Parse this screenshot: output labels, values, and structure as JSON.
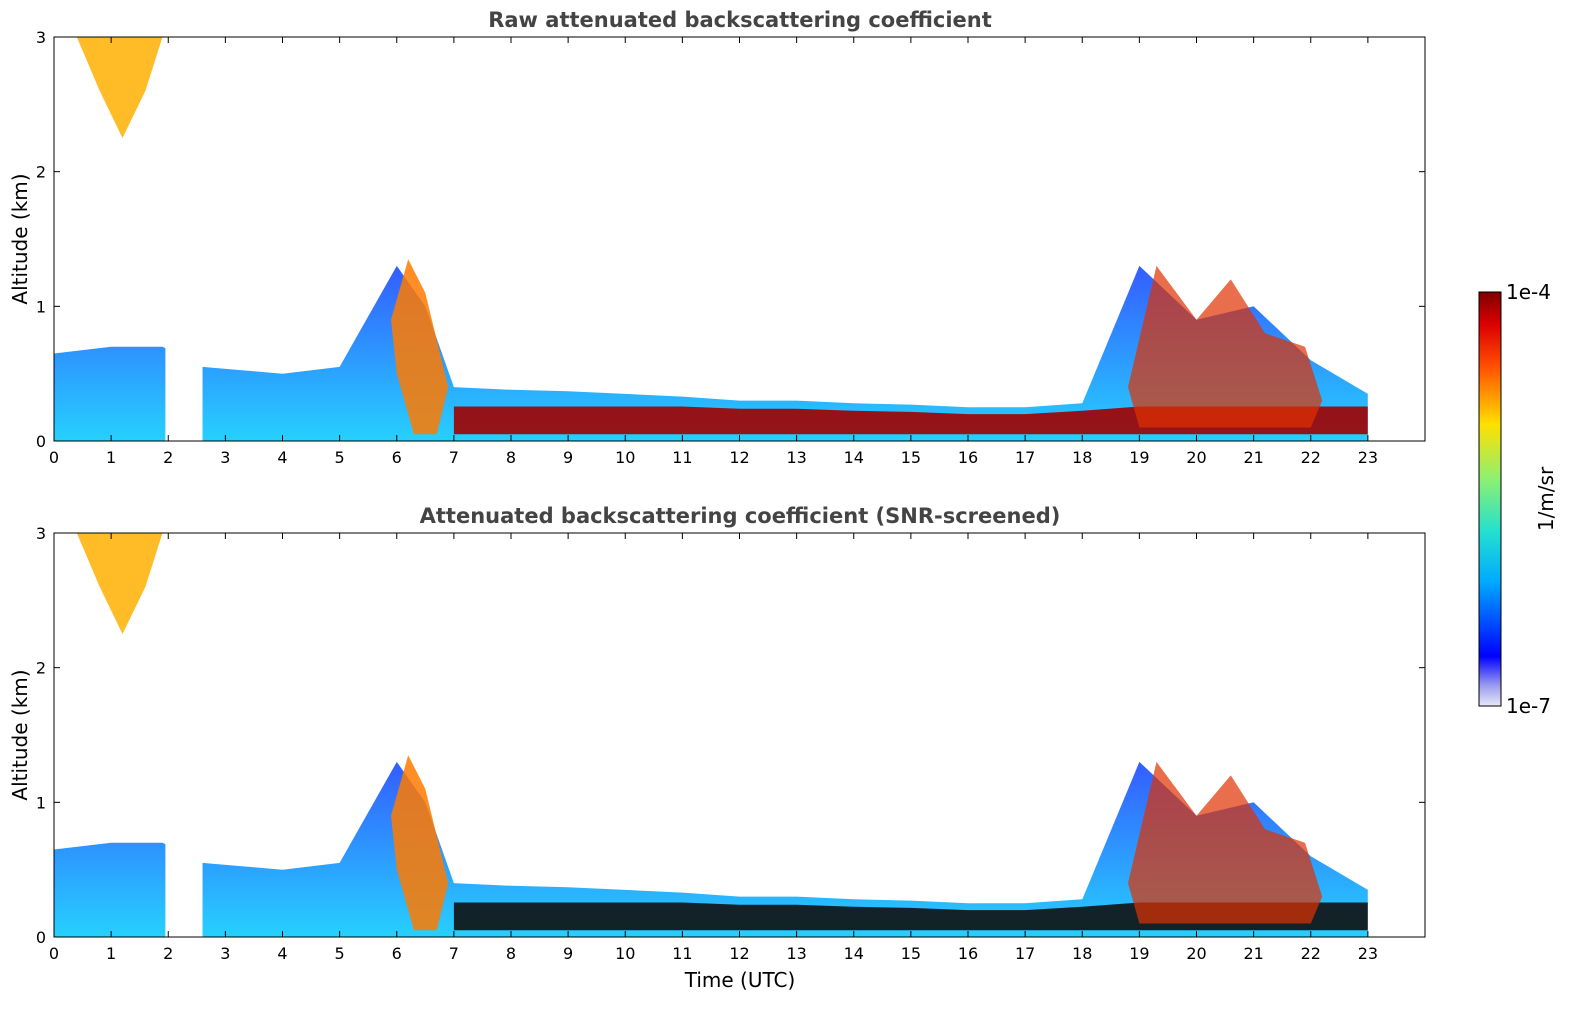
{
  "chart_data": [
    {
      "type": "heatmap",
      "title": "Raw attenuated backscattering coefficient",
      "xlabel": "",
      "ylabel": "Altitude (km)",
      "xlim": [
        0,
        24
      ],
      "ylim": [
        0,
        3
      ],
      "xticks": [
        "0",
        "1",
        "2",
        "3",
        "4",
        "5",
        "6",
        "7",
        "8",
        "9",
        "10",
        "11",
        "12",
        "13",
        "14",
        "15",
        "16",
        "17",
        "18",
        "19",
        "20",
        "21",
        "22",
        "23"
      ],
      "yticks": [
        "0",
        "1",
        "2",
        "3"
      ],
      "data_gap": [
        1.95,
        2.6
      ],
      "data_end": 23.0,
      "boundary_layer_top_km": [
        [
          0,
          0.65
        ],
        [
          1,
          0.7
        ],
        [
          1.9,
          0.7
        ],
        [
          2.6,
          0.55
        ],
        [
          4,
          0.5
        ],
        [
          5,
          0.55
        ],
        [
          6,
          1.3
        ],
        [
          6.5,
          1.0
        ],
        [
          7,
          0.4
        ],
        [
          8,
          0.38
        ],
        [
          9,
          0.37
        ],
        [
          10,
          0.35
        ],
        [
          11,
          0.33
        ],
        [
          12,
          0.3
        ],
        [
          13,
          0.3
        ],
        [
          14,
          0.28
        ],
        [
          15,
          0.27
        ],
        [
          16,
          0.25
        ],
        [
          17,
          0.25
        ],
        [
          18,
          0.28
        ],
        [
          19,
          1.3
        ],
        [
          20,
          0.9
        ],
        [
          21,
          1.0
        ],
        [
          22,
          0.6
        ],
        [
          23,
          0.35
        ]
      ]
    },
    {
      "type": "heatmap",
      "title": "Attenuated backscattering coefficient (SNR-screened)",
      "xlabel": "Time (UTC)",
      "ylabel": "Altitude (km)",
      "xlim": [
        0,
        24
      ],
      "ylim": [
        0,
        3
      ],
      "xticks": [
        "0",
        "1",
        "2",
        "3",
        "4",
        "5",
        "6",
        "7",
        "8",
        "9",
        "10",
        "11",
        "12",
        "13",
        "14",
        "15",
        "16",
        "17",
        "18",
        "19",
        "20",
        "21",
        "22",
        "23"
      ],
      "yticks": [
        "0",
        "1",
        "2",
        "3"
      ],
      "data_gap": [
        1.95,
        2.6
      ],
      "data_end": 23.0
    }
  ],
  "colorbar": {
    "label": "1/m/sr",
    "max_label": "1e-4",
    "min_label": "1e-7",
    "scale": "log",
    "colormap": "jet"
  }
}
